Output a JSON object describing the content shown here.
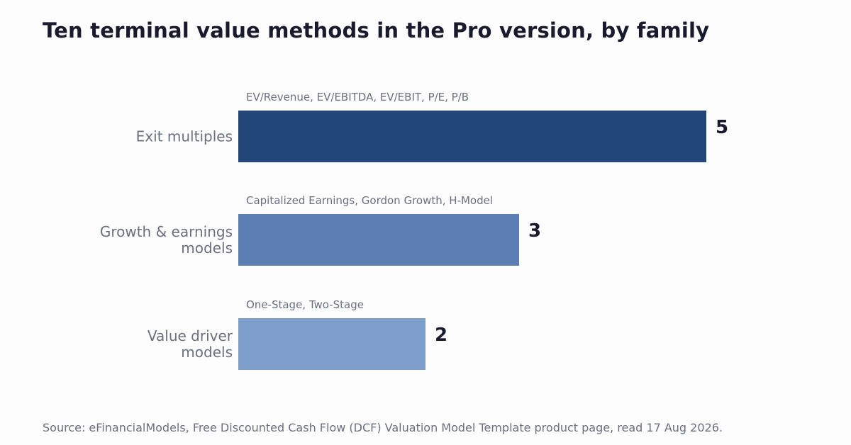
{
  "chart_data": {
    "type": "bar",
    "orientation": "horizontal",
    "title": "Ten terminal value methods in the Pro version, by family",
    "categories": [
      "Exit multiples",
      "Growth & earnings models",
      "Value driver models"
    ],
    "category_lines": [
      [
        "Exit multiples"
      ],
      [
        "Growth & earnings",
        "models"
      ],
      [
        "Value driver",
        "models"
      ]
    ],
    "values": [
      5,
      3,
      2
    ],
    "annotations": [
      "EV/Revenue, EV/EBITDA, EV/EBIT, P/E, P/B",
      "Capitalized Earnings, Gordon Growth, H-Model",
      "One-Stage, Two-Stage"
    ],
    "colors": [
      "#234679",
      "#5c7eb3",
      "#7f9fcb"
    ],
    "xlim": [
      0,
      5
    ],
    "grid": false,
    "legend": "none"
  },
  "source": "Source: eFinancialModels, Free Discounted Cash Flow (DCF) Valuation Model Template product page, read 17 Aug 2026."
}
